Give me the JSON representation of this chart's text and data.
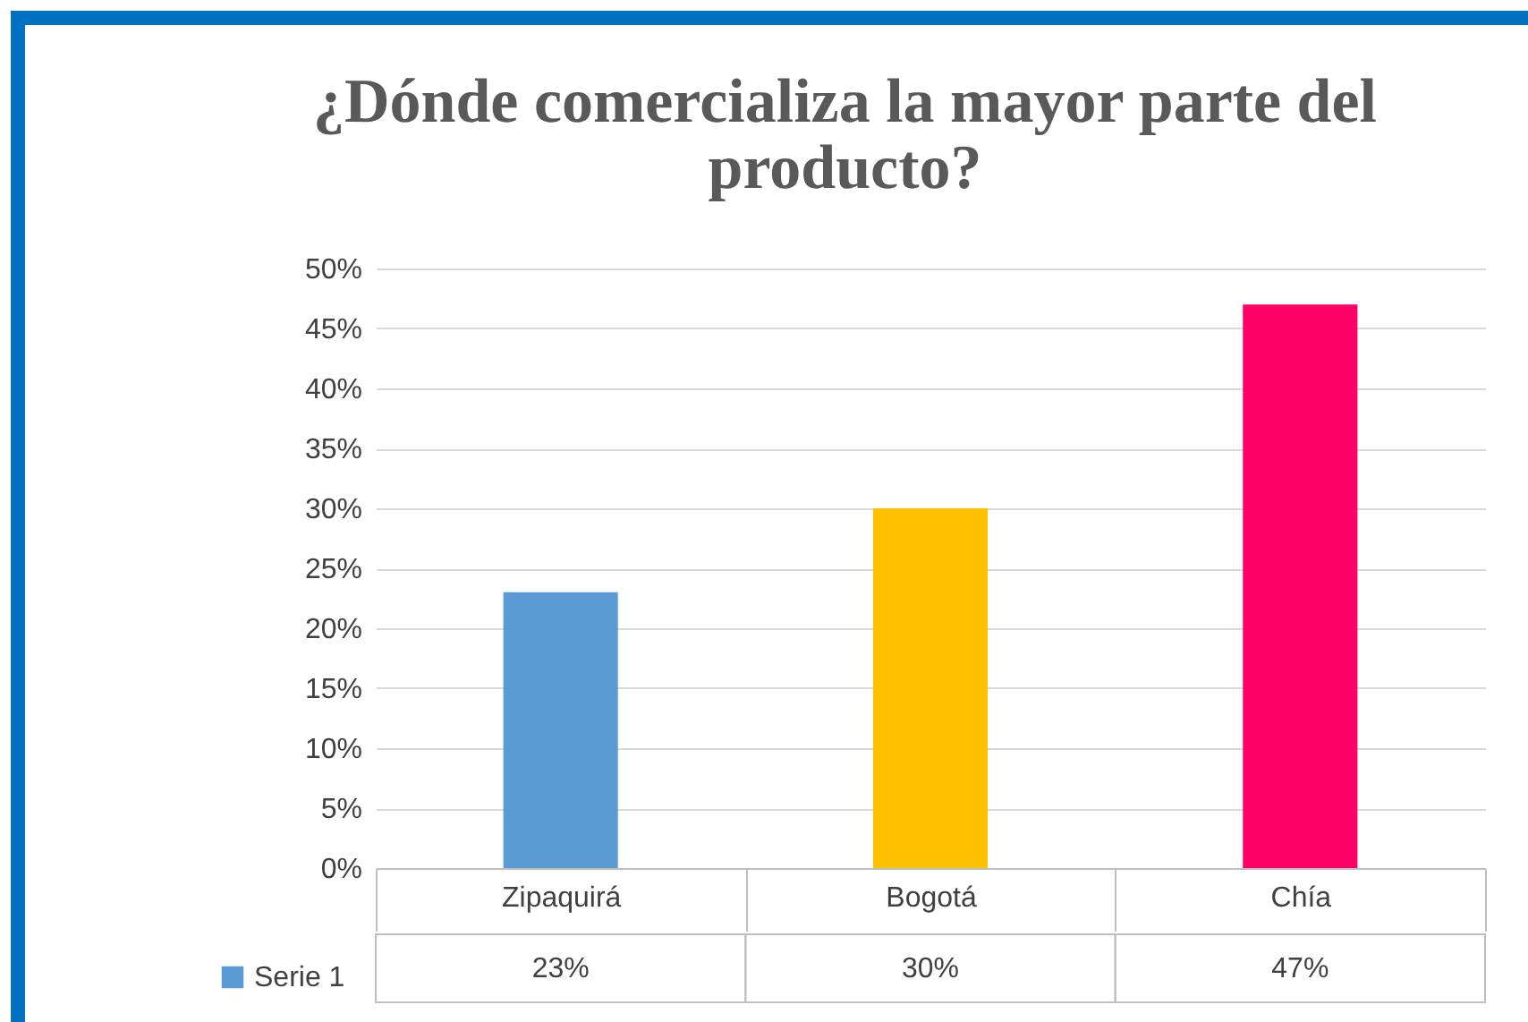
{
  "chart_data": {
    "type": "bar",
    "title": "¿Dónde comercializa la mayor parte del producto?",
    "categories": [
      "Zipaquirá",
      "Bogotá",
      "Chía"
    ],
    "series": [
      {
        "name": "Serie 1",
        "color": "#5b9bd5",
        "colors": [
          "#5b9bd5",
          "#ffc000",
          "#ff0066"
        ],
        "values": [
          23,
          30,
          47
        ],
        "value_labels": [
          "23%",
          "30%",
          "47%"
        ]
      }
    ],
    "ylim": [
      0,
      50
    ],
    "yticks": [
      {
        "value": 0,
        "label": "0%"
      },
      {
        "value": 5,
        "label": "5%"
      },
      {
        "value": 10,
        "label": "10%"
      },
      {
        "value": 15,
        "label": "15%"
      },
      {
        "value": 20,
        "label": "20%"
      },
      {
        "value": 25,
        "label": "25%"
      },
      {
        "value": 30,
        "label": "30%"
      },
      {
        "value": 35,
        "label": "35%"
      },
      {
        "value": 40,
        "label": "40%"
      },
      {
        "value": 45,
        "label": "45%"
      },
      {
        "value": 50,
        "label": "50%"
      }
    ],
    "grid": "y",
    "legend": "bottom left"
  }
}
